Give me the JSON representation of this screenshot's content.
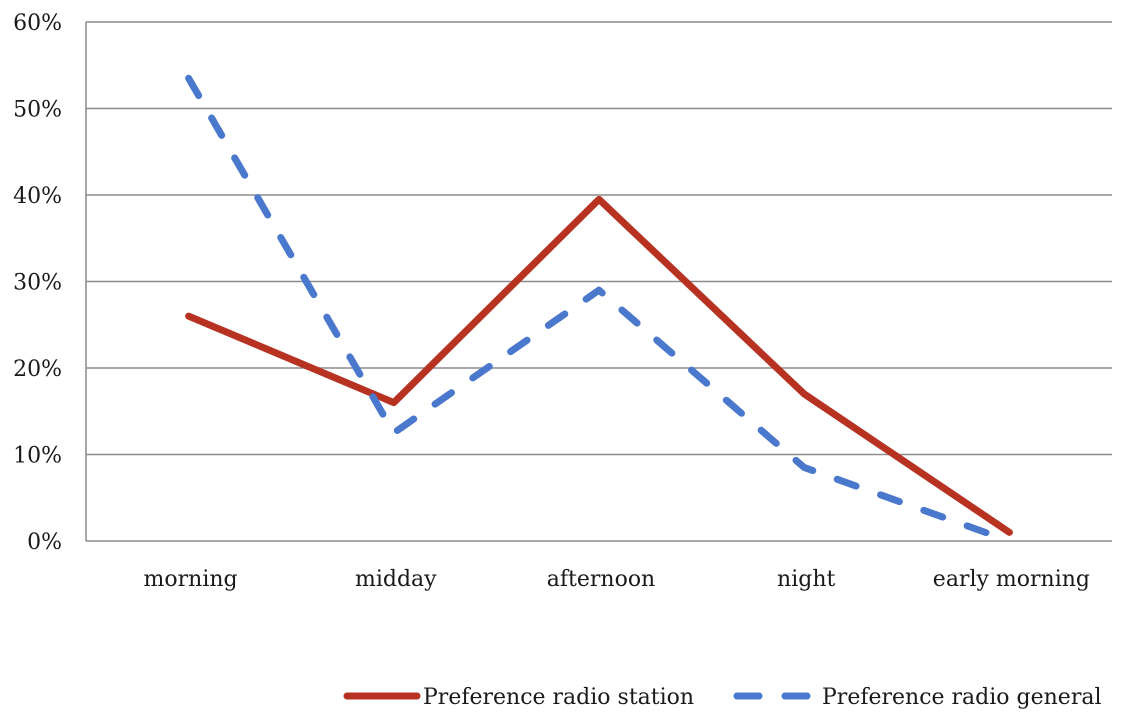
{
  "chart_data": {
    "type": "line",
    "title": "",
    "xlabel": "",
    "ylabel": "",
    "categories": [
      "morning",
      "midday",
      "afternoon",
      "night",
      "early morning"
    ],
    "ylim": [
      0,
      60
    ],
    "yticks": [
      "0%",
      "10%",
      "20%",
      "30%",
      "40%",
      "50%",
      "60%"
    ],
    "grid": "horizontal",
    "legend_position": "bottom",
    "series": [
      {
        "name": "Preference radio station",
        "values": [
          26,
          16,
          39.5,
          17,
          1
        ],
        "color": "#b83222",
        "style": "solid"
      },
      {
        "name": "Preference radio general",
        "values": [
          53.5,
          12.5,
          29,
          8.5,
          0
        ],
        "color": "#4a78cc",
        "style": "dashed"
      }
    ]
  }
}
